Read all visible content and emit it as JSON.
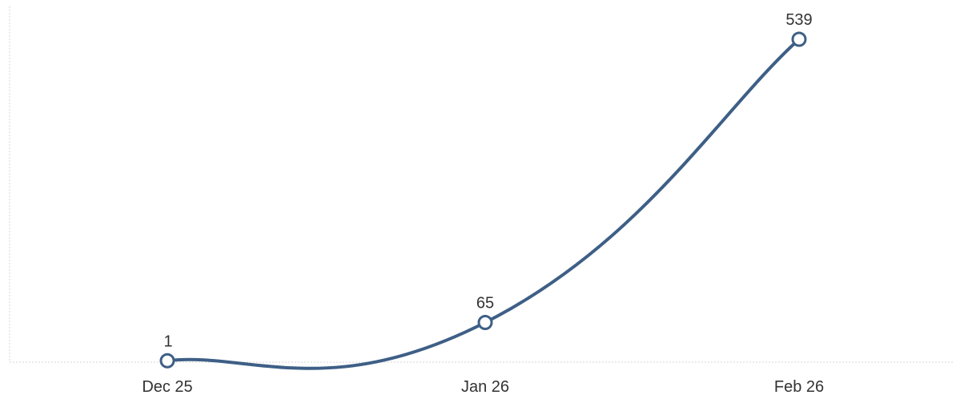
{
  "chart_data": {
    "type": "line",
    "categories": [
      "Dec 25",
      "Jan 26",
      "Feb 26"
    ],
    "series": [
      {
        "values": [
          1,
          65,
          539
        ]
      }
    ],
    "data_labels": [
      "1",
      "65",
      "539"
    ],
    "ylim": [
      0,
      539
    ],
    "grid": false,
    "legend": "none",
    "smooth": true
  },
  "colors": {
    "series": "#3e5f86",
    "marker_fill": "#ffffff",
    "axis": "#d6d6d6",
    "text": "#333333"
  }
}
